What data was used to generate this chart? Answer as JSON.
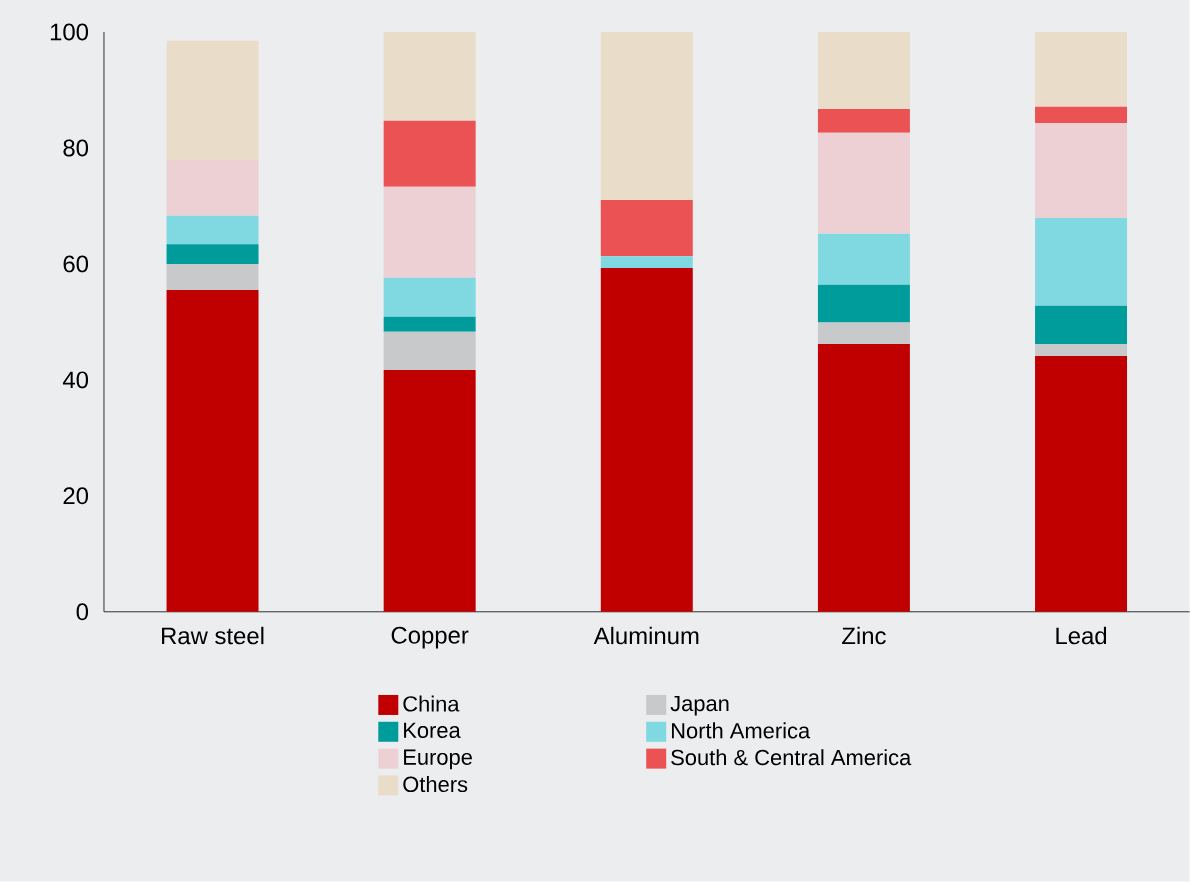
{
  "chart_data": {
    "type": "bar",
    "stacked": true,
    "categories": [
      "Raw steel",
      "Copper",
      "Aluminum",
      "Zinc",
      "Lead"
    ],
    "series": [
      {
        "name": "China",
        "color": "#c00000",
        "values": [
          55.5,
          41.7,
          59.3,
          46.2,
          44.1
        ]
      },
      {
        "name": "Japan",
        "color": "#c8c9ca",
        "values": [
          4.5,
          6.6,
          0,
          3.7,
          2.1
        ]
      },
      {
        "name": "Korea",
        "color": "#009b9b",
        "values": [
          3.4,
          2.6,
          0,
          6.5,
          6.6
        ]
      },
      {
        "name": "North America",
        "color": "#80d8e0",
        "values": [
          4.9,
          6.7,
          2.0,
          8.8,
          15.1
        ]
      },
      {
        "name": "Europe",
        "color": "#edd0d3",
        "values": [
          9.6,
          15.7,
          0,
          17.4,
          16.4
        ]
      },
      {
        "name": "South & Central America",
        "color": "#eb5253",
        "values": [
          0,
          11.4,
          9.7,
          4.1,
          2.8
        ]
      },
      {
        "name": "Others",
        "color": "#e9dcc8",
        "values": [
          20.6,
          15.3,
          29.0,
          13.3,
          12.9
        ]
      }
    ],
    "ylim": [
      0,
      100
    ],
    "yticks": [
      0,
      20,
      40,
      60,
      80,
      100
    ],
    "grid": false,
    "legend": "bottom"
  }
}
